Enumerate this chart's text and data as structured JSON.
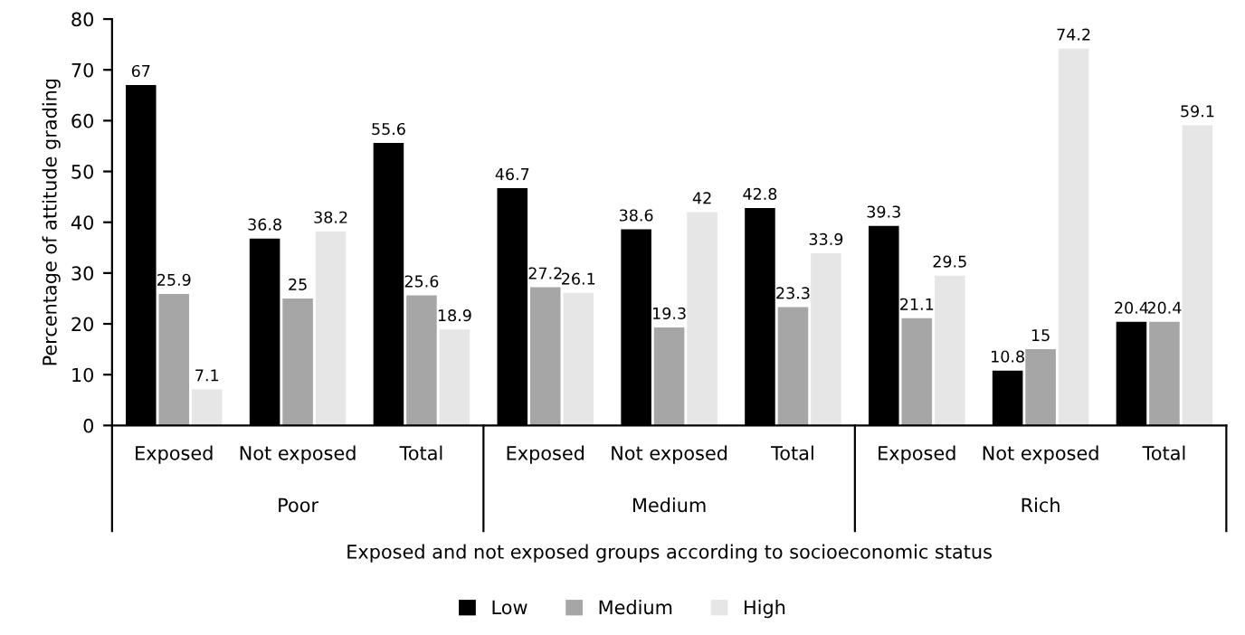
{
  "chart_data": {
    "type": "bar",
    "categories": [
      "Exposed",
      "Not exposed",
      "Total",
      "Exposed",
      "Not exposed",
      "Total",
      "Exposed",
      "Not exposed",
      "Total"
    ],
    "annotations": [
      "Poor",
      "Medium",
      "Rich"
    ],
    "xlabel": "Exposed and not exposed groups according to socioeconomic status",
    "ylabel": "Percentage of attitude grading",
    "series": [
      {
        "name": "Low",
        "color": "#000000",
        "values": [
          67,
          36.8,
          55.6,
          46.7,
          38.6,
          42.8,
          39.3,
          10.8,
          20.4
        ]
      },
      {
        "name": "Medium",
        "color": "#a6a6a6",
        "values": [
          25.9,
          25,
          25.6,
          27.2,
          19.3,
          23.3,
          21.1,
          15,
          20.4
        ]
      },
      {
        "name": "High",
        "color": "#e6e6e6",
        "values": [
          7.1,
          38.2,
          18.9,
          26.1,
          42,
          33.9,
          29.5,
          74.2,
          59.1
        ]
      }
    ],
    "ylim": [
      0,
      80
    ],
    "yticks": [
      0,
      10,
      20,
      30,
      40,
      50,
      60,
      70,
      80
    ],
    "data_labels": true,
    "grid": false,
    "legend": "bottom"
  }
}
